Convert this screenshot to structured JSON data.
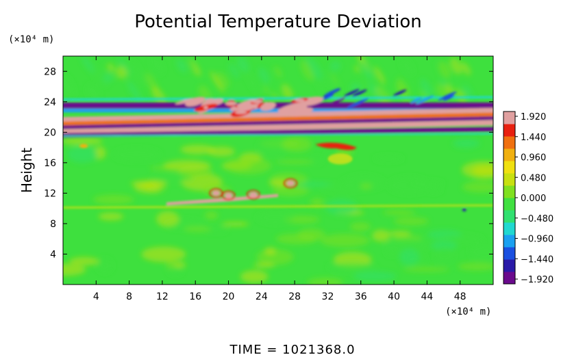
{
  "chart_data": {
    "type": "heatmap",
    "title": "Potential Temperature Deviation",
    "ylabel": "Height",
    "x_unit": "(×10⁴ m)",
    "y_unit": "(×10⁴ m)",
    "xlim": [
      0,
      52
    ],
    "ylim": [
      0,
      30
    ],
    "x_ticks": [
      4,
      8,
      12,
      16,
      20,
      24,
      28,
      32,
      36,
      40,
      44,
      48
    ],
    "y_ticks": [
      4,
      8,
      12,
      16,
      20,
      24,
      28
    ],
    "colorbar": {
      "min": -1.92,
      "max": 1.92,
      "tick_labels": [
        "1.920",
        "1.440",
        "0.960",
        "0.480",
        "0.000",
        "−0.480",
        "−0.960",
        "−1.440",
        "−1.920"
      ],
      "colors": [
        "#6a0a8c",
        "#2a1aa8",
        "#1a50e0",
        "#1aa0f0",
        "#20d8d0",
        "#30e070",
        "#40e040",
        "#80e020",
        "#c8e010",
        "#f0e010",
        "#f0b010",
        "#f07010",
        "#e82010",
        "#e0a0a0"
      ]
    },
    "background_value": 0.1,
    "features": [
      {
        "name": "upper-layer-band",
        "x_range": [
          0,
          52
        ],
        "y_range": [
          19.6,
          24
        ],
        "pattern": "alternating bands of -1.92 and +1.92"
      },
      {
        "name": "upper-wave-crests",
        "x_range": [
          14,
          30
        ],
        "y_range": [
          22.5,
          24.5
        ],
        "value": 1.9
      },
      {
        "name": "mid-level-patch",
        "x_range": [
          30,
          36
        ],
        "y_range": [
          15,
          19
        ],
        "value": 1.6
      },
      {
        "name": "lower-layer-streak",
        "x_range": [
          12,
          28
        ],
        "y_range": [
          10,
          14
        ],
        "value": 1.8
      }
    ],
    "annotation": "TIME = 1021368.0"
  }
}
